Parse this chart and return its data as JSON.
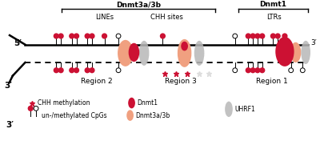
{
  "bg_color": "#ffffff",
  "red_color": "#cc1133",
  "salmon_color": "#f0a080",
  "gray_color": "#b8b8b8",
  "title_dnmt3": "Dnmt3a/3b",
  "title_dnmt1": "Dnmt1",
  "label_lines": "LINEs",
  "label_chh": "CHH sites",
  "label_ltrs": "LTRs",
  "label_r1": "Region 1",
  "label_r2": "Region 2",
  "label_r3": "Region 3",
  "legend_chh": "CHH methylation",
  "legend_cpgs": "un-/methylated CpGs",
  "legend_dnmt1": "Dnmt1",
  "legend_dnmt3": "Dnmt3a/3b",
  "legend_uhrf1": "UHRF1",
  "prime5": "5′",
  "prime3_top": "3′",
  "prime3_bot": "3′",
  "fig_w": 4.0,
  "fig_h": 1.81,
  "dpi": 100
}
